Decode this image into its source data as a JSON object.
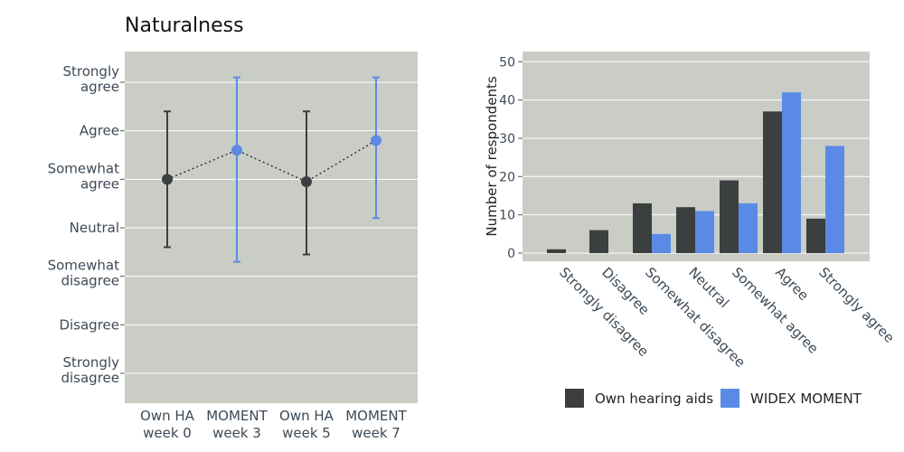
{
  "title": "Naturalness",
  "colors": {
    "panel_bg": "#cacdc5",
    "own": "#3c3f3f",
    "moment": "#5b8ae6",
    "grid": "#ffffff"
  },
  "chart_data": [
    {
      "type": "scatter",
      "subtype": "dot-with-error-bars",
      "title": "Naturalness",
      "y_tick_labels": [
        [
          "Strongly",
          "disagree"
        ],
        [
          "Disagree"
        ],
        [
          "Somewhat",
          "disagree"
        ],
        [
          "Neutral"
        ],
        [
          "Somewhat",
          "agree"
        ],
        [
          "Agree"
        ],
        [
          "Strongly",
          "agree"
        ]
      ],
      "ylim": [
        1,
        7
      ],
      "categories": [
        [
          "Own HA",
          "week 0"
        ],
        [
          "MOMENT",
          "week 3"
        ],
        [
          "Own HA",
          "week 5"
        ],
        [
          "MOMENT",
          "week 7"
        ]
      ],
      "points": [
        {
          "mean": 5.0,
          "low": 3.6,
          "high": 6.4,
          "series": "own"
        },
        {
          "mean": 5.6,
          "low": 3.3,
          "high": 7.1,
          "series": "moment"
        },
        {
          "mean": 4.95,
          "low": 3.45,
          "high": 6.4,
          "series": "own"
        },
        {
          "mean": 5.8,
          "low": 4.2,
          "high": 7.1,
          "series": "moment"
        }
      ],
      "connector": "dotted",
      "grid": true
    },
    {
      "type": "bar",
      "ylabel": "Number of respondents",
      "ylim": [
        -2,
        52
      ],
      "yticks": [
        0,
        10,
        20,
        30,
        40,
        50
      ],
      "categories": [
        "Strongly disagree",
        "Disagree",
        "Somewhat disagree",
        "Neutral",
        "Somewhat agree",
        "Agree",
        "Strongly agree"
      ],
      "series": [
        {
          "name": "Own hearing aids",
          "color_key": "own",
          "values": [
            1,
            6,
            13,
            12,
            19,
            37,
            9
          ]
        },
        {
          "name": "WIDEX MOMENT",
          "color_key": "moment",
          "values": [
            0,
            0,
            5,
            11,
            13,
            42,
            28
          ]
        }
      ],
      "grid": true,
      "legend": "bottom"
    }
  ]
}
